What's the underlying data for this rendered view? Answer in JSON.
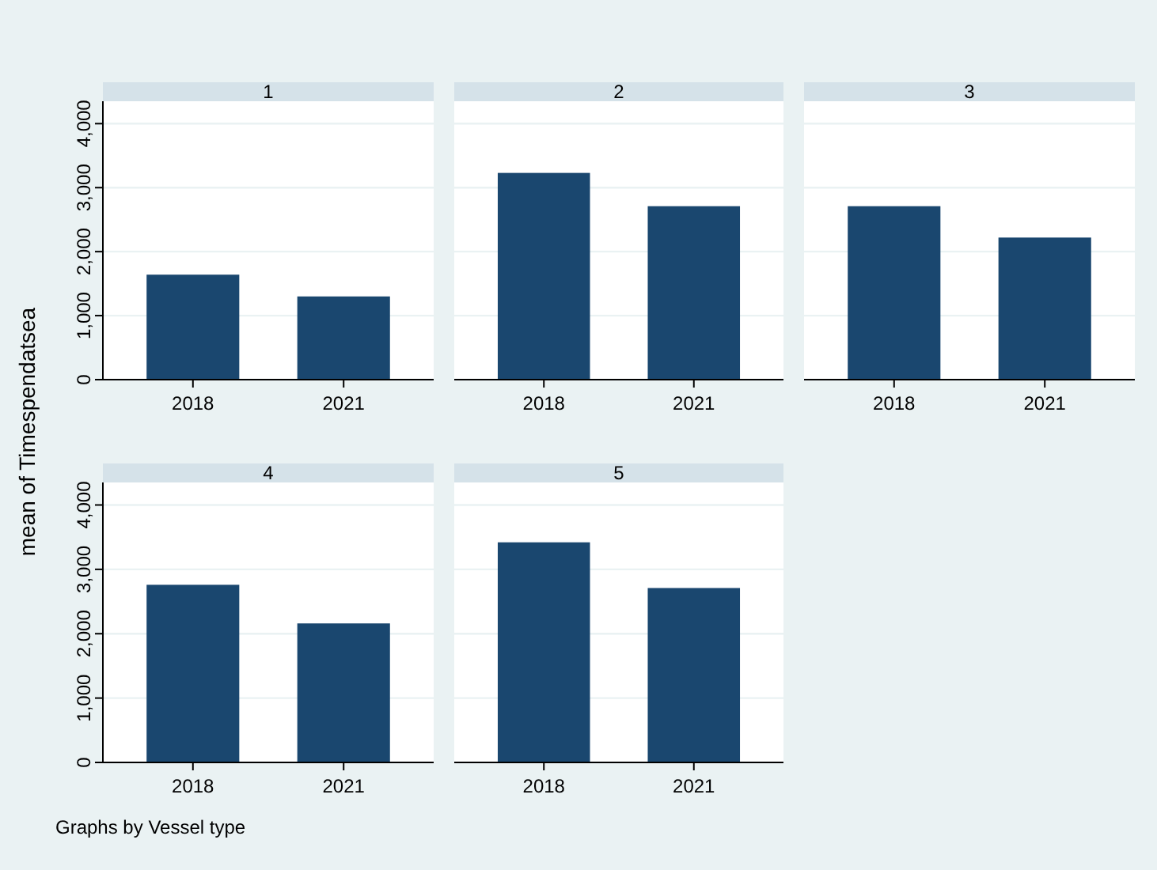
{
  "chart_data": [
    {
      "type": "bar",
      "title": "1",
      "ylabel": "mean of Timespendatsea",
      "categories": [
        "2018",
        "2021"
      ],
      "values": [
        1640,
        1300
      ],
      "color": "#1a476f",
      "ylim": [
        0,
        4350
      ],
      "yticks": [
        {
          "value": 0,
          "label": "0"
        },
        {
          "value": 1000,
          "label": "1,000"
        },
        {
          "value": 2000,
          "label": "2,000"
        },
        {
          "value": 3000,
          "label": "3,000"
        },
        {
          "value": 4000,
          "label": "4,000"
        }
      ],
      "grid": "y"
    },
    {
      "type": "bar",
      "title": "2",
      "categories": [
        "2018",
        "2021"
      ],
      "values": [
        3230,
        2710
      ],
      "color": "#1a476f",
      "ylim": [
        0,
        4350
      ],
      "yticks": [
        0,
        1000,
        2000,
        3000,
        4000
      ],
      "grid": "y",
      "tick_labels": "x"
    },
    {
      "type": "bar",
      "title": "3",
      "categories": [
        "2018",
        "2021"
      ],
      "values": [
        2710,
        2220
      ],
      "color": "#1a476f",
      "ylim": [
        0,
        4350
      ],
      "yticks": [
        0,
        1000,
        2000,
        3000,
        4000
      ],
      "grid": "y",
      "tick_labels": "x"
    },
    {
      "type": "bar",
      "title": "4",
      "categories": [
        "2018",
        "2021"
      ],
      "values": [
        2760,
        2160
      ],
      "color": "#1a476f",
      "ylim": [
        0,
        4350
      ],
      "yticks": [
        {
          "value": 0,
          "label": "0"
        },
        {
          "value": 1000,
          "label": "1,000"
        },
        {
          "value": 2000,
          "label": "2,000"
        },
        {
          "value": 3000,
          "label": "3,000"
        },
        {
          "value": 4000,
          "label": "4,000"
        }
      ],
      "grid": "y"
    },
    {
      "type": "bar",
      "title": "5",
      "categories": [
        "2018",
        "2021"
      ],
      "values": [
        3420,
        2710
      ],
      "color": "#1a476f",
      "ylim": [
        0,
        4350
      ],
      "yticks": [
        0,
        1000,
        2000,
        3000,
        4000
      ],
      "grid": "y",
      "tick_labels": "x",
      "annotations": [
        "Graphs by Vessel type"
      ]
    }
  ]
}
